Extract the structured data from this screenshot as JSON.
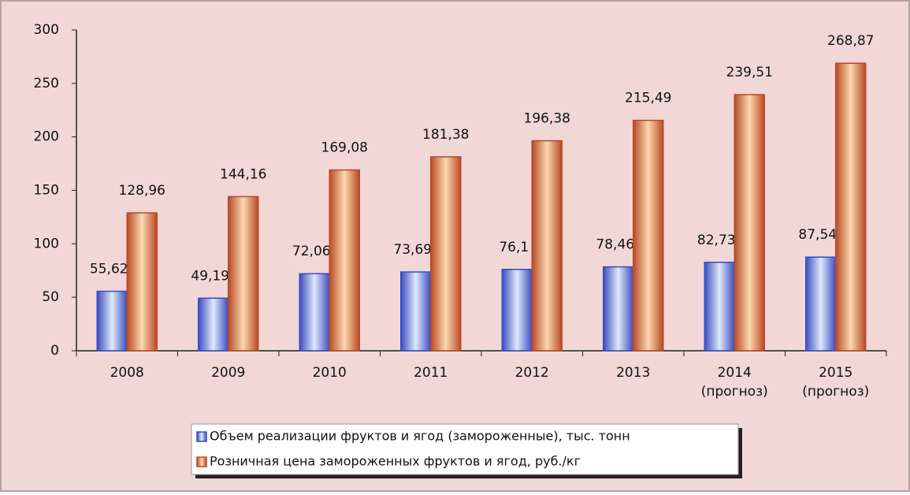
{
  "chart_data": {
    "type": "bar",
    "categories": [
      "2008",
      "2009",
      "2010",
      "2011",
      "2012",
      "2013",
      "2014 (прогноз)",
      "2015 (прогноз)"
    ],
    "series": [
      {
        "name": "Объем реализации фруктов и ягод (замороженные), тыс. тонн",
        "color": "#3b4cc0",
        "values": [
          55.62,
          49.19,
          72.06,
          73.69,
          76.1,
          78.46,
          82.73,
          87.54
        ],
        "value_labels": [
          "55,62",
          "49,19",
          "72,06",
          "73,69",
          "76,1",
          "78,46",
          "82,73",
          "87,54"
        ]
      },
      {
        "name": "Розничная цена замороженных фруктов и ягод, руб./кг",
        "color": "#b84a25",
        "values": [
          128.96,
          144.16,
          169.08,
          181.38,
          196.38,
          215.49,
          239.51,
          268.87
        ],
        "value_labels": [
          "128,96",
          "144,16",
          "169,08",
          "181,38",
          "196,38",
          "215,49",
          "239,51",
          "268,87"
        ]
      }
    ],
    "ylim": [
      0,
      300
    ],
    "yticks": [
      0,
      50,
      100,
      150,
      200,
      250,
      300
    ],
    "legend": "bottom"
  }
}
